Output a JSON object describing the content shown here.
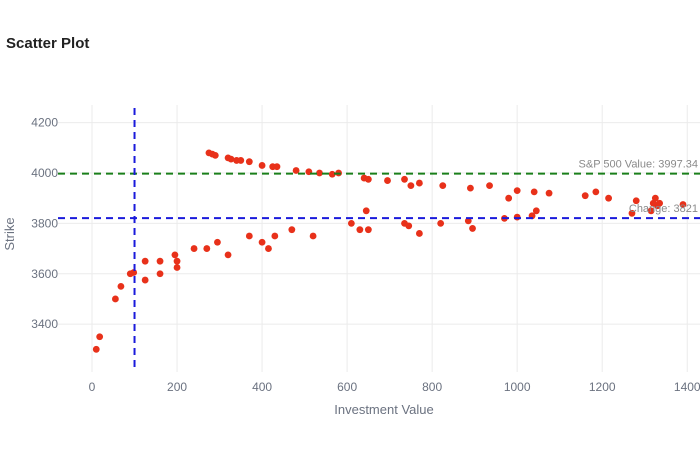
{
  "chart_data": {
    "type": "scatter",
    "title": "Scatter Plot",
    "xlabel": "Investment Value",
    "ylabel": "Strike",
    "xlim": [
      -80,
      1430
    ],
    "ylim": [
      3210,
      4270
    ],
    "x_ticks": [
      0,
      200,
      400,
      600,
      800,
      1000,
      1200,
      1400
    ],
    "y_ticks": [
      3400,
      3600,
      3800,
      4000,
      4200
    ],
    "grid": true,
    "marker_color": "#e8311a",
    "points": [
      [
        10,
        3300
      ],
      [
        18,
        3350
      ],
      [
        55,
        3500
      ],
      [
        68,
        3550
      ],
      [
        90,
        3600
      ],
      [
        98,
        3605
      ],
      [
        125,
        3650
      ],
      [
        125,
        3575
      ],
      [
        160,
        3650
      ],
      [
        160,
        3600
      ],
      [
        195,
        3675
      ],
      [
        200,
        3650
      ],
      [
        200,
        3625
      ],
      [
        240,
        3700
      ],
      [
        270,
        3700
      ],
      [
        295,
        3725
      ],
      [
        320,
        3675
      ],
      [
        370,
        3750
      ],
      [
        400,
        3725
      ],
      [
        415,
        3700
      ],
      [
        430,
        3750
      ],
      [
        470,
        3775
      ],
      [
        520,
        3750
      ],
      [
        610,
        3800
      ],
      [
        630,
        3775
      ],
      [
        645,
        3850
      ],
      [
        650,
        3775
      ],
      [
        735,
        3800
      ],
      [
        745,
        3790
      ],
      [
        770,
        3760
      ],
      [
        820,
        3800
      ],
      [
        885,
        3810
      ],
      [
        895,
        3780
      ],
      [
        970,
        3820
      ],
      [
        1000,
        3825
      ],
      [
        1035,
        3830
      ],
      [
        1045,
        3850
      ],
      [
        1270,
        3840
      ],
      [
        1315,
        3850
      ],
      [
        1325,
        3900
      ],
      [
        1330,
        3870
      ],
      [
        1335,
        3880
      ],
      [
        1390,
        3875
      ],
      [
        275,
        4080
      ],
      [
        283,
        4075
      ],
      [
        290,
        4070
      ],
      [
        320,
        4060
      ],
      [
        327,
        4055
      ],
      [
        340,
        4050
      ],
      [
        350,
        4050
      ],
      [
        370,
        4045
      ],
      [
        400,
        4030
      ],
      [
        425,
        4025
      ],
      [
        435,
        4025
      ],
      [
        480,
        4010
      ],
      [
        510,
        4005
      ],
      [
        535,
        4000
      ],
      [
        565,
        3995
      ],
      [
        580,
        4000
      ],
      [
        640,
        3980
      ],
      [
        650,
        3975
      ],
      [
        695,
        3970
      ],
      [
        735,
        3975
      ],
      [
        750,
        3950
      ],
      [
        770,
        3960
      ],
      [
        825,
        3950
      ],
      [
        890,
        3940
      ],
      [
        935,
        3950
      ],
      [
        980,
        3900
      ],
      [
        1000,
        3930
      ],
      [
        1040,
        3925
      ],
      [
        1075,
        3920
      ],
      [
        1160,
        3910
      ],
      [
        1185,
        3925
      ],
      [
        1215,
        3900
      ],
      [
        1280,
        3890
      ],
      [
        1320,
        3880
      ]
    ],
    "reference_lines": [
      {
        "orientation": "horizontal",
        "value": 3997.34,
        "color": "#1a7f1a",
        "dash": "dash",
        "label": "S&P 500 Value: 3997.34"
      },
      {
        "orientation": "horizontal",
        "value": 3821,
        "color": "#1a1adb",
        "dash": "dash",
        "label": "Change: 3821"
      },
      {
        "orientation": "vertical",
        "value": 100,
        "color": "#1a1adb",
        "dash": "dash",
        "label": ""
      }
    ]
  }
}
